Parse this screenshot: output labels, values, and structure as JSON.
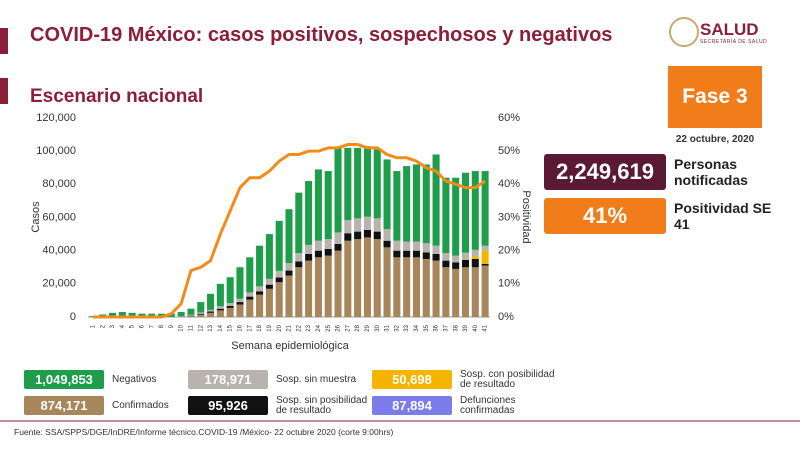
{
  "header": {
    "title": "COVID-19 México: casos positivos, sospechosos y negativos",
    "subtitle": "Escenario nacional",
    "brand": "SALUD",
    "subbrand": "SECRETARÍA DE SALUD",
    "phase": "Fase 3",
    "date": "22 octubre, 2020"
  },
  "kpis": [
    {
      "value": "2,249,619",
      "label": "Personas notificadas",
      "color": "#5b1a33"
    },
    {
      "value": "41%",
      "label": "Positividad SE 41",
      "color": "#f07c1a"
    }
  ],
  "extra_legend": {
    "total": "87,894",
    "name": "Defunciones confirmadas",
    "color": "#7b7bea"
  },
  "source": "Fuente: SSA/SPPS/DGE/InDRE/Informe técnico.COVID-19 /México- 22 octubre 2020 (corte 9:00hrs)",
  "chart_data": {
    "type": "bar",
    "stacked": true,
    "xlabel": "Semana epidemiológica",
    "ylabel": "Casos",
    "y2label": "Positividad",
    "categories": [
      "1",
      "2",
      "3",
      "4",
      "5",
      "6",
      "7",
      "8",
      "9",
      "10",
      "11",
      "12",
      "13",
      "14",
      "15",
      "16",
      "17",
      "18",
      "19",
      "20",
      "21",
      "22",
      "23",
      "24",
      "25",
      "26",
      "27",
      "28",
      "29",
      "30",
      "31",
      "32",
      "33",
      "34",
      "35",
      "36",
      "37",
      "38",
      "39",
      "40",
      "41"
    ],
    "ylim": [
      0,
      120000
    ],
    "yticks": [
      0,
      {
        "value": 20000,
        "label": "20,000"
      },
      {
        "value": 40000,
        "label": "40,000"
      },
      {
        "value": 60000,
        "label": "60,000"
      },
      {
        "value": 80000,
        "label": "80,000"
      },
      {
        "value": 100000,
        "label": "100,000"
      },
      {
        "value": 120000,
        "label": "120,000"
      }
    ],
    "y2lim": [
      0,
      60
    ],
    "y2ticks": [
      {
        "value": 0,
        "label": "0%"
      },
      {
        "value": 10,
        "label": "10%"
      },
      {
        "value": 20,
        "label": "20%"
      },
      {
        "value": 30,
        "label": "30%"
      },
      {
        "value": 40,
        "label": "40%"
      },
      {
        "value": 50,
        "label": "50%"
      },
      {
        "value": 60,
        "label": "60%"
      }
    ],
    "series": [
      {
        "name": "Confirmados",
        "total": "874,171",
        "color": "#a6865a",
        "values": [
          0,
          0,
          0,
          0,
          0,
          0,
          0,
          0,
          0,
          100,
          500,
          1500,
          2500,
          4000,
          5500,
          7500,
          10500,
          13500,
          17000,
          21000,
          25000,
          30000,
          34000,
          36000,
          37000,
          40000,
          46000,
          47000,
          48000,
          47000,
          42000,
          36000,
          36000,
          36000,
          35000,
          34000,
          30000,
          29000,
          30000,
          30000,
          31000
        ]
      },
      {
        "name": "Sosp. sin posibilidad de resultado",
        "total": "95,926",
        "color": "#111111",
        "values": [
          0,
          0,
          0,
          0,
          0,
          0,
          0,
          0,
          0,
          100,
          300,
          500,
          800,
          1000,
          1200,
          1500,
          1800,
          2000,
          2500,
          2800,
          3000,
          3500,
          4000,
          4000,
          4000,
          4000,
          4500,
          4500,
          4500,
          4500,
          4000,
          4000,
          4000,
          4000,
          4000,
          4000,
          4000,
          4000,
          4500,
          5000,
          1000
        ]
      },
      {
        "name": "Sosp. con posibilidad de resultado",
        "total": "50,698",
        "color": "#f4b400",
        "values": [
          0,
          0,
          0,
          0,
          0,
          0,
          0,
          0,
          0,
          0,
          0,
          0,
          0,
          0,
          0,
          0,
          0,
          0,
          0,
          0,
          0,
          0,
          0,
          0,
          0,
          0,
          0,
          0,
          0,
          0,
          0,
          0,
          0,
          0,
          0,
          0,
          0,
          0,
          300,
          1500,
          8000
        ]
      },
      {
        "name": "Sosp. sin muestra",
        "total": "178,971",
        "color": "#b8b3ad",
        "values": [
          100,
          100,
          100,
          100,
          100,
          100,
          100,
          100,
          100,
          300,
          500,
          800,
          1000,
          1500,
          1700,
          2000,
          2500,
          3000,
          3500,
          4000,
          4500,
          5000,
          5500,
          6000,
          6000,
          7000,
          8000,
          8000,
          8000,
          8000,
          7000,
          6000,
          5500,
          5500,
          5500,
          5000,
          4500,
          4000,
          4000,
          4000,
          3000
        ]
      },
      {
        "name": "Negativos",
        "total": "1,049,853",
        "color": "#1e9e4a",
        "values": [
          400,
          1400,
          2400,
          2900,
          2400,
          1900,
          1900,
          1900,
          1900,
          2500,
          3700,
          6200,
          9700,
          13500,
          15600,
          19000,
          21200,
          24500,
          27000,
          30200,
          32500,
          36500,
          38500,
          43000,
          41000,
          51000,
          43500,
          42500,
          42500,
          41500,
          42000,
          42000,
          45500,
          46500,
          47500,
          55000,
          45500,
          47000,
          48200,
          47500,
          45000
        ]
      },
      {
        "type": "line",
        "axis": "y2",
        "color": "#f08c1a",
        "values": [
          0,
          0,
          0,
          0,
          0,
          0,
          0,
          0,
          1,
          4,
          14,
          15,
          17,
          25,
          32,
          39,
          42,
          42,
          44,
          47,
          49,
          49,
          50,
          50,
          51,
          51,
          52,
          52,
          51,
          51,
          49,
          48,
          48,
          47,
          45,
          44,
          41,
          40,
          39,
          39,
          41
        ]
      }
    ]
  }
}
